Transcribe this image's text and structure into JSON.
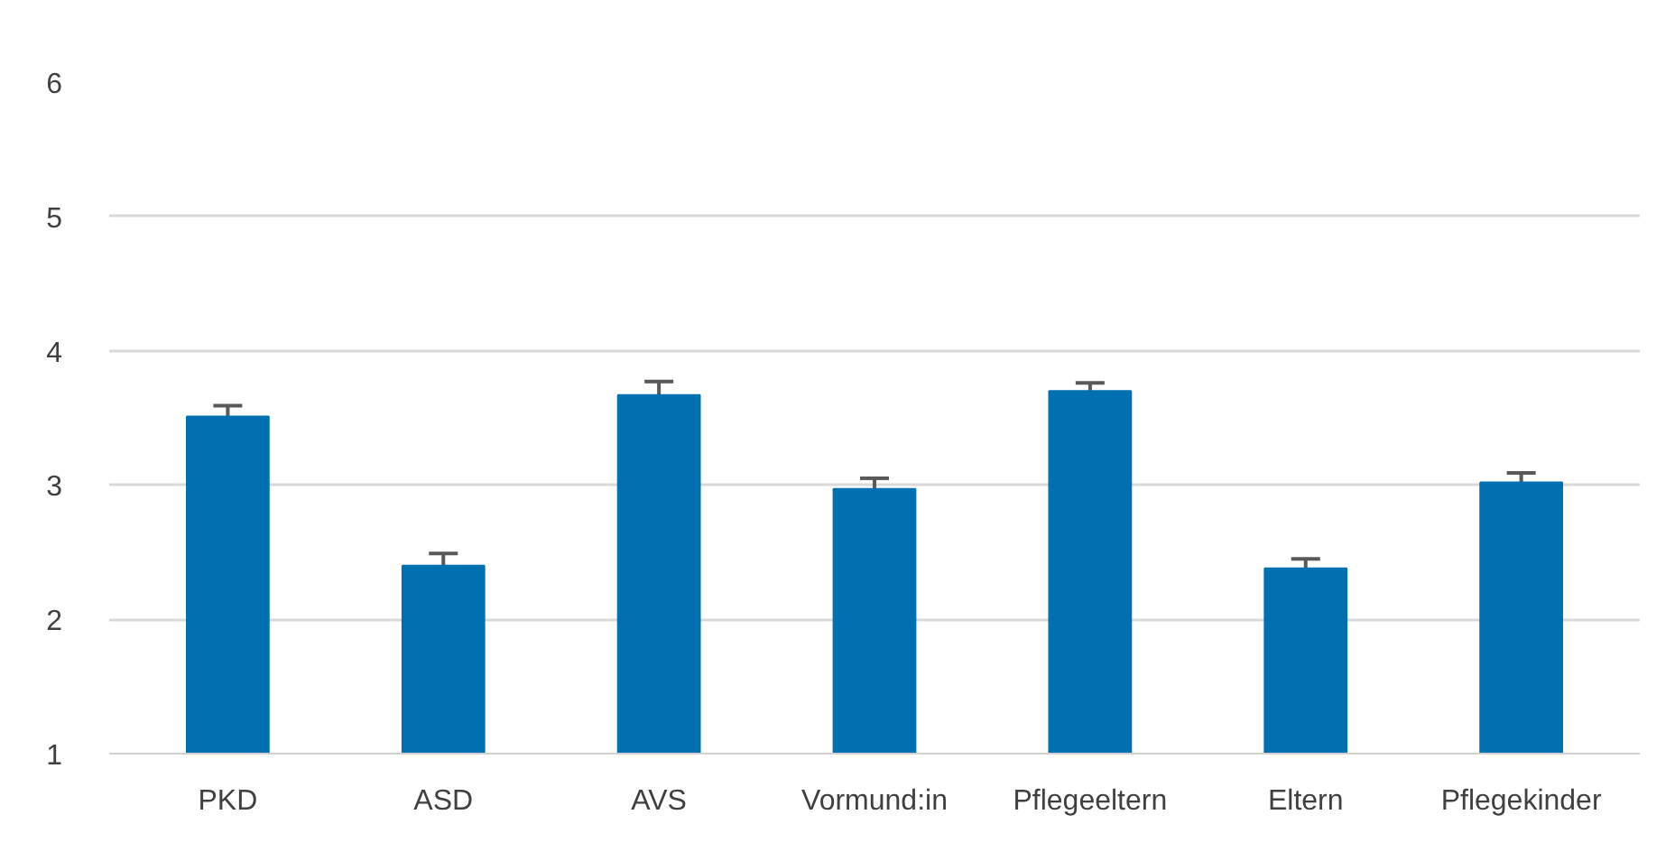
{
  "chart_data": {
    "type": "bar",
    "categories": [
      "PKD",
      "ASD",
      "AVS",
      "Vormund:in",
      "Pflegeeltern",
      "Eltern",
      "Pflegekinder"
    ],
    "values": [
      3.51,
      2.4,
      3.67,
      2.97,
      3.7,
      2.38,
      3.02
    ],
    "errors": [
      0.08,
      0.09,
      0.1,
      0.08,
      0.06,
      0.07,
      0.07
    ],
    "color": "#0070b0",
    "ylim": [
      1,
      6
    ],
    "yticks": [
      1,
      2,
      3,
      4,
      5,
      6
    ],
    "grid": "y"
  }
}
